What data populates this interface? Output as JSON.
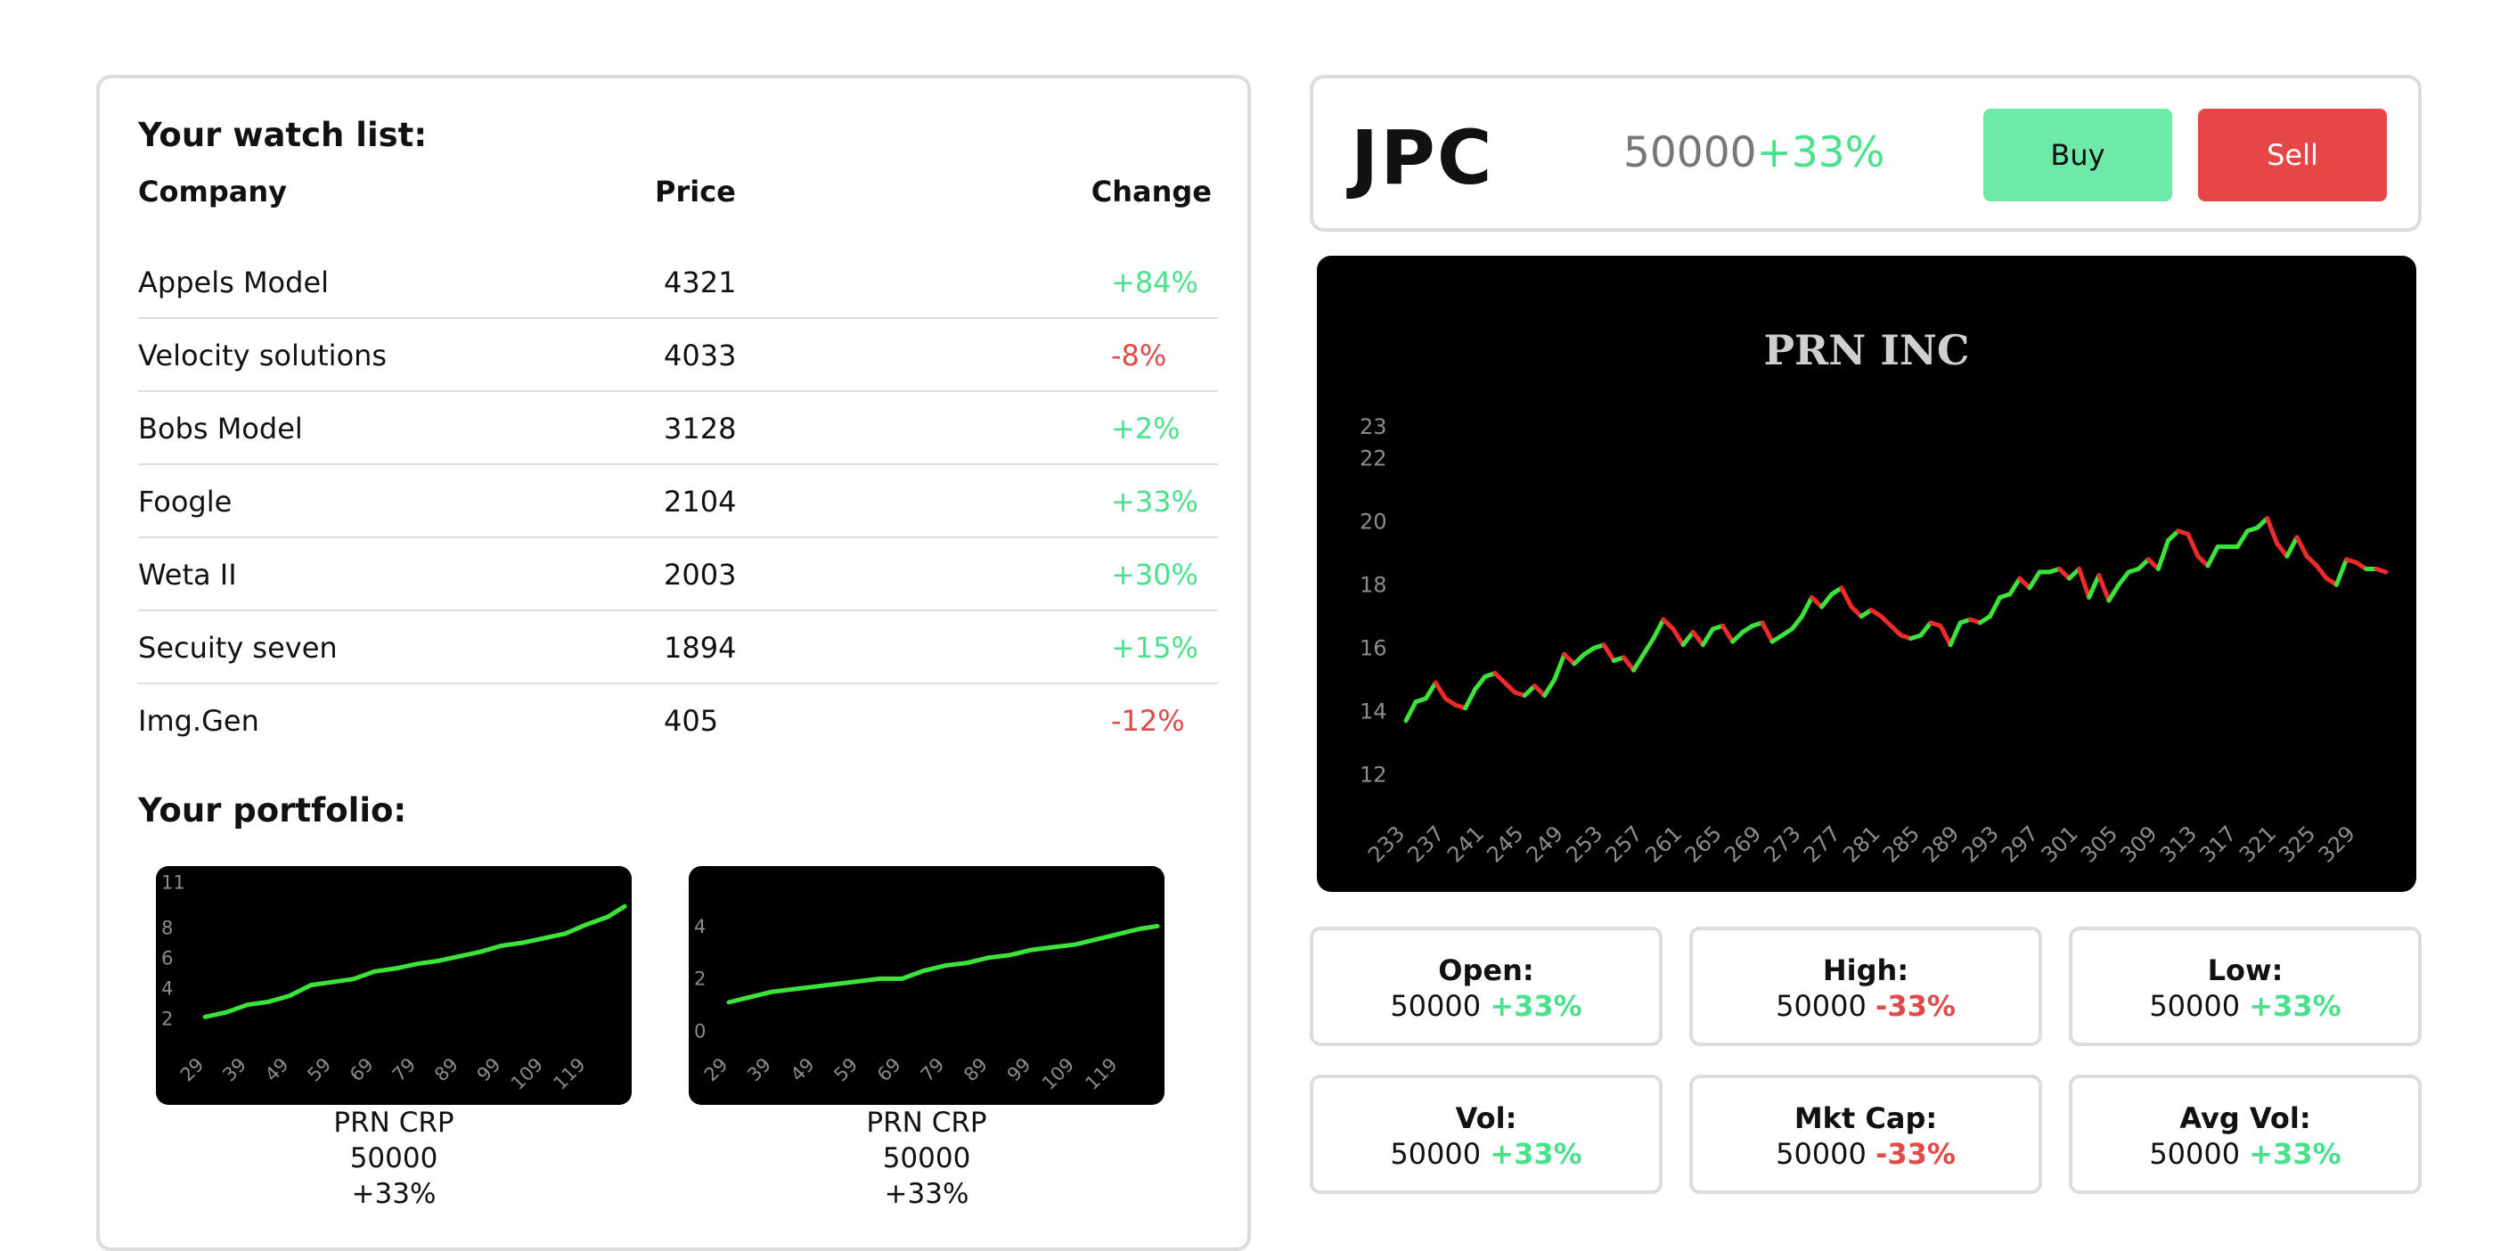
{
  "watchlist": {
    "title": "Your watch list:",
    "columns": [
      "Company",
      "Price",
      "Change"
    ],
    "rows": [
      {
        "company": "Appels Model",
        "price": "4321",
        "change": "+84%"
      },
      {
        "company": "Velocity solutions",
        "price": "4033",
        "change": "-8%"
      },
      {
        "company": "Bobs Model",
        "price": "3128",
        "change": "+2%"
      },
      {
        "company": "Foogle",
        "price": "2104",
        "change": "+33%"
      },
      {
        "company": "Weta II",
        "price": "2003",
        "change": "+30%"
      },
      {
        "company": "Secuity seven",
        "price": "1894",
        "change": "+15%"
      },
      {
        "company": "Img.Gen",
        "price": "405",
        "change": "-12%"
      }
    ]
  },
  "portfolio": {
    "title": "Your portfolio:",
    "cards": [
      {
        "name": "PRN CRP",
        "price": "50000",
        "change": "+33%"
      },
      {
        "name": "PRN CRP",
        "price": "50000",
        "change": "+33%"
      }
    ]
  },
  "header": {
    "ticker": "JPC",
    "price": "50000",
    "change": "+33%",
    "buy_label": "Buy",
    "sell_label": "Sell"
  },
  "stats": [
    {
      "label": "Open:",
      "value": "50000",
      "change": "+33%"
    },
    {
      "label": "High:",
      "value": "50000",
      "change": "-33%"
    },
    {
      "label": "Low:",
      "value": "50000",
      "change": "+33%"
    },
    {
      "label": "Vol:",
      "value": "50000",
      "change": "+33%"
    },
    {
      "label": "Mkt Cap:",
      "value": "50000",
      "change": "-33%"
    },
    {
      "label": "Avg Vol:",
      "value": "50000",
      "change": "+33%"
    }
  ],
  "colors": {
    "positive": "#4ae08c",
    "negative": "#e04a48",
    "buy": "#6de9a8",
    "sell": "#e64646"
  },
  "chart_data": [
    {
      "type": "line",
      "title": "PRN INC",
      "x": [
        233,
        234,
        235,
        236,
        237,
        238,
        239,
        240,
        241,
        242,
        243,
        244,
        245,
        246,
        247,
        248,
        249,
        250,
        251,
        252,
        253,
        254,
        255,
        256,
        257,
        258,
        259,
        260,
        261,
        262,
        263,
        264,
        265,
        266,
        267,
        268,
        269,
        270,
        271,
        272,
        273,
        274,
        275,
        276,
        277,
        278,
        279,
        280,
        281,
        282,
        283,
        284,
        285,
        286,
        287,
        288,
        289,
        290,
        291,
        292,
        293,
        294,
        295,
        296,
        297,
        298,
        299,
        300,
        301,
        302,
        303,
        304,
        305,
        306,
        307,
        308,
        309,
        310,
        311,
        312,
        313,
        314,
        315,
        316,
        317,
        318,
        319,
        320,
        321,
        322,
        323,
        324,
        325,
        326,
        327,
        328,
        329,
        330,
        331,
        332
      ],
      "values": [
        13.7,
        14.3,
        14.4,
        14.9,
        14.4,
        14.2,
        14.1,
        14.7,
        15.1,
        15.2,
        14.9,
        14.6,
        14.5,
        14.8,
        14.5,
        15.0,
        15.8,
        15.5,
        15.8,
        16.0,
        16.1,
        15.6,
        15.7,
        15.3,
        15.8,
        16.3,
        16.9,
        16.6,
        16.1,
        16.5,
        16.1,
        16.6,
        16.7,
        16.2,
        16.5,
        16.7,
        16.8,
        16.2,
        16.4,
        16.6,
        17.0,
        17.6,
        17.3,
        17.7,
        17.9,
        17.3,
        17.0,
        17.2,
        17.0,
        16.7,
        16.4,
        16.3,
        16.4,
        16.8,
        16.7,
        16.1,
        16.8,
        16.9,
        16.8,
        17.0,
        17.6,
        17.7,
        18.2,
        17.9,
        18.4,
        18.4,
        18.5,
        18.2,
        18.5,
        17.6,
        18.3,
        17.5,
        18.0,
        18.4,
        18.5,
        18.8,
        18.5,
        19.4,
        19.7,
        19.6,
        18.9,
        18.6,
        19.2,
        19.2,
        19.2,
        19.7,
        19.8,
        20.1,
        19.3,
        18.9,
        19.5,
        18.9,
        18.6,
        18.2,
        18.0,
        18.8,
        18.7,
        18.5,
        18.5,
        18.4
      ],
      "xtick_labels": [
        "233",
        "237",
        "241",
        "245",
        "249",
        "253",
        "257",
        "261",
        "265",
        "269",
        "273",
        "277",
        "281",
        "285",
        "289",
        "293",
        "297",
        "301",
        "305",
        "309",
        "313",
        "317",
        "321",
        "325",
        "329"
      ],
      "yticks": [
        12,
        14,
        16,
        18,
        20,
        22,
        23
      ],
      "ylim": [
        11.5,
        23.5
      ]
    },
    {
      "type": "line",
      "title": "",
      "x": [
        29,
        34,
        39,
        44,
        49,
        54,
        59,
        64,
        69,
        74,
        79,
        84,
        89,
        94,
        99,
        104,
        109,
        114,
        119,
        124,
        128
      ],
      "values": [
        2.1,
        2.4,
        2.9,
        3.1,
        3.5,
        4.2,
        4.4,
        4.6,
        5.1,
        5.3,
        5.6,
        5.8,
        6.1,
        6.4,
        6.8,
        7.0,
        7.3,
        7.6,
        8.2,
        8.7,
        9.4
      ],
      "xtick_labels": [
        "29",
        "39",
        "49",
        "59",
        "69",
        "79",
        "89",
        "99",
        "109",
        "119"
      ],
      "yticks": [
        2,
        4,
        6,
        8,
        11
      ],
      "ylim": [
        1,
        11
      ]
    },
    {
      "type": "line",
      "title": "",
      "x": [
        29,
        34,
        39,
        44,
        49,
        54,
        59,
        64,
        69,
        74,
        79,
        84,
        89,
        94,
        99,
        104,
        109,
        114,
        119,
        124,
        128
      ],
      "values": [
        1.1,
        1.3,
        1.5,
        1.6,
        1.7,
        1.8,
        1.9,
        2.0,
        2.0,
        2.3,
        2.5,
        2.6,
        2.8,
        2.9,
        3.1,
        3.2,
        3.3,
        3.5,
        3.7,
        3.9,
        4.0
      ],
      "xtick_labels": [
        "29",
        "39",
        "49",
        "59",
        "69",
        "79",
        "89",
        "99",
        "109",
        "119"
      ],
      "yticks": [
        0,
        2,
        4
      ],
      "ylim": [
        -0.5,
        5
      ]
    }
  ]
}
